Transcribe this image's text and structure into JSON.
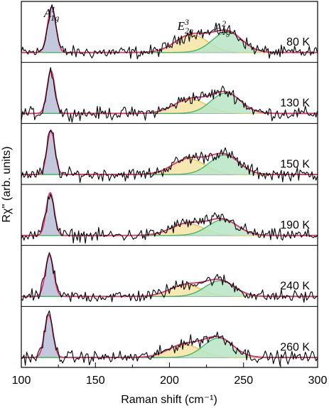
{
  "chart_data": {
    "type": "line",
    "xlabel": "Raman shift (cm⁻¹)",
    "ylabel": "Rχ'' (arb. units)",
    "xlim": [
      100,
      300
    ],
    "xticks": [
      100,
      150,
      200,
      250,
      300
    ],
    "yticks_shown": false,
    "peak_labels": [
      {
        "name": "A",
        "sub": "1g",
        "sup": "1",
        "x": 120
      },
      {
        "name": "E",
        "sub": "2g",
        "sup": "3",
        "x": 213
      },
      {
        "name": "A",
        "sub": "1g",
        "sup": "2",
        "x": 238
      }
    ],
    "fit_components": [
      {
        "name": "A1g(1)",
        "color": "#8a93b8"
      },
      {
        "name": "E2g(3)",
        "color": "#e8c84a"
      },
      {
        "name": "A1g(2)",
        "color": "#3fb86a"
      },
      {
        "name": "total fit",
        "color": "#e0306a"
      }
    ],
    "series": [
      {
        "name": "80 K",
        "label": "80 K",
        "peaks": [
          {
            "center": 120.5,
            "width": 2.8,
            "height": 1.6
          },
          {
            "center": 215,
            "width": 11,
            "height": 0.62
          },
          {
            "center": 239,
            "width": 10,
            "height": 0.72
          }
        ]
      },
      {
        "name": "130 K",
        "label": "130 K",
        "peaks": [
          {
            "center": 120.0,
            "width": 2.6,
            "height": 1.5
          },
          {
            "center": 214,
            "width": 11,
            "height": 0.5
          },
          {
            "center": 238,
            "width": 10,
            "height": 0.72
          }
        ]
      },
      {
        "name": "150 K",
        "label": "150 K",
        "peaks": [
          {
            "center": 120.0,
            "width": 2.6,
            "height": 1.55
          },
          {
            "center": 213,
            "width": 11,
            "height": 0.55
          },
          {
            "center": 237,
            "width": 10,
            "height": 0.68
          }
        ]
      },
      {
        "name": "190 K",
        "label": "190 K",
        "peaks": [
          {
            "center": 119.5,
            "width": 2.7,
            "height": 1.5
          },
          {
            "center": 212,
            "width": 11,
            "height": 0.42
          },
          {
            "center": 236,
            "width": 10,
            "height": 0.55
          }
        ]
      },
      {
        "name": "240 K",
        "label": "240 K",
        "peaks": [
          {
            "center": 119.0,
            "width": 2.8,
            "height": 1.45
          },
          {
            "center": 211,
            "width": 11,
            "height": 0.4
          },
          {
            "center": 234,
            "width": 10,
            "height": 0.55
          }
        ]
      },
      {
        "name": "260 K",
        "label": "260 K",
        "peaks": [
          {
            "center": 118.5,
            "width": 2.8,
            "height": 1.5
          },
          {
            "center": 210,
            "width": 11,
            "height": 0.45
          },
          {
            "center": 233,
            "width": 10,
            "height": 0.68
          }
        ]
      }
    ]
  }
}
